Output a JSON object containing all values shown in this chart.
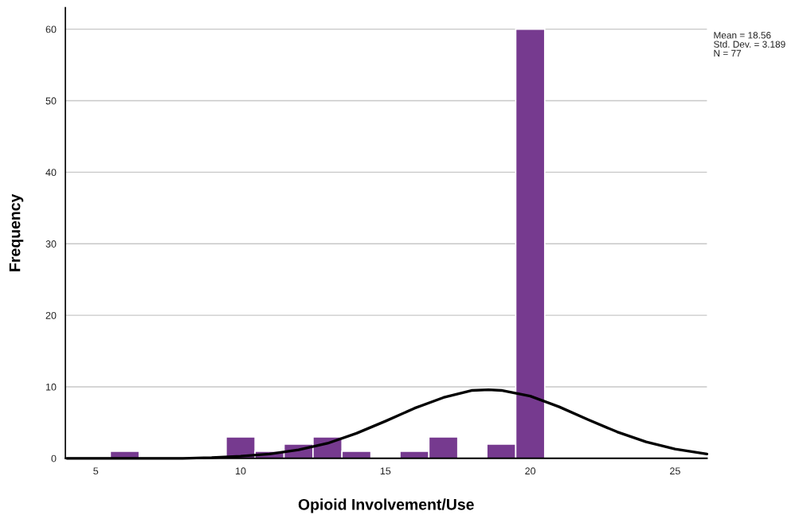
{
  "chart_data": {
    "type": "histogram",
    "xlabel": "Opioid Involvement/Use",
    "ylabel": "Frequency",
    "bins": [
      5.5,
      6.5,
      7.5,
      8.5,
      9.5,
      10.5,
      11.5,
      12.5,
      13.5,
      14.5,
      15.5,
      16.5,
      17.5,
      18.5,
      19.5,
      20.5
    ],
    "values": [
      1,
      0,
      0,
      0,
      3,
      1,
      2,
      3,
      1,
      0,
      1,
      3,
      0,
      2,
      60
    ],
    "color": "#763a8f",
    "series": [
      {
        "type": "line",
        "color": "#000000",
        "x": [
          4,
          6,
          8,
          9,
          10,
          11,
          12,
          13,
          14,
          15,
          16,
          17,
          18,
          18.56,
          19,
          20,
          21,
          22,
          23,
          24,
          25,
          26.1
        ],
        "values": [
          0,
          0,
          0,
          0.1,
          0.3,
          0.6,
          1.2,
          2.1,
          3.5,
          5.2,
          7.0,
          8.5,
          9.5,
          9.6,
          9.5,
          8.7,
          7.2,
          5.4,
          3.7,
          2.3,
          1.3,
          0.6
        ]
      }
    ],
    "annotations": [
      "Mean = 18.56",
      "Std. Dev. = 3.189",
      "N = 77"
    ],
    "xlim": [
      3.95,
      26.1
    ],
    "ylim": [
      0,
      63
    ],
    "xticks": [
      5,
      10,
      15,
      20,
      25
    ],
    "yticks": [
      0,
      10,
      20,
      30,
      40,
      50,
      60
    ],
    "grid": "y"
  }
}
